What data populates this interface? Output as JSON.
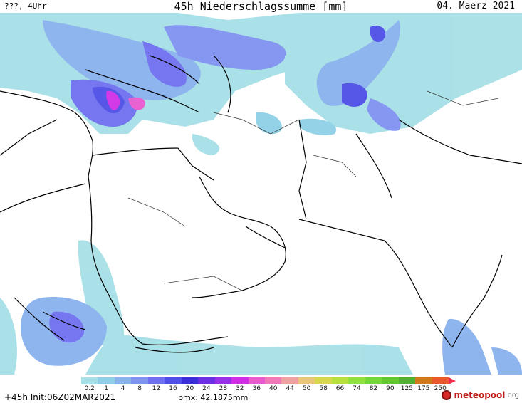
{
  "header": {
    "left": "???, 4Uhr",
    "title": "45h Niederschlagssumme [mm]",
    "right": "04. Maerz 2021"
  },
  "footer": {
    "left": "+45h Init:06Z02MAR2021",
    "pmx": "pmx: 42.1875mm"
  },
  "brand": {
    "name_main": "meteopool",
    "name_suffix": ".org"
  },
  "colorbar": {
    "labels": [
      "0.2",
      "1",
      "4",
      "8",
      "12",
      "16",
      "20",
      "24",
      "28",
      "32",
      "36",
      "40",
      "44",
      "50",
      "58",
      "66",
      "74",
      "82",
      "90",
      "125",
      "175",
      "250"
    ],
    "colors": [
      "#a6dfe6",
      "#8fd0e6",
      "#8ab2ee",
      "#7f92f0",
      "#6f6ff0",
      "#4f4fe6",
      "#3a2fd6",
      "#6a2fe0",
      "#9a2fe6",
      "#d02fe6",
      "#e85ad0",
      "#f07ab8",
      "#f0a0a0",
      "#e8c878",
      "#d8d850",
      "#b8e040",
      "#90e040",
      "#70d838",
      "#60c830",
      "#50b030",
      "#d0781a",
      "#e85a2a"
    ],
    "arrow_color": "#f02a4a"
  }
}
